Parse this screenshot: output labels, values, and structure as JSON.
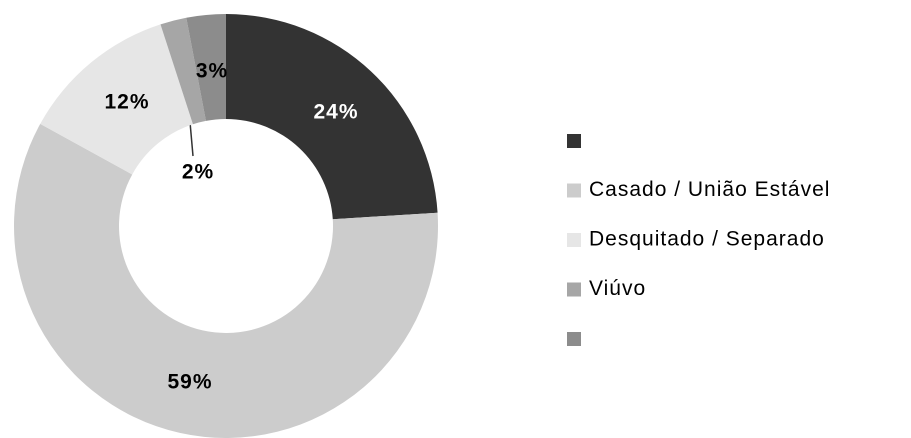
{
  "chart_data": {
    "type": "donut",
    "categories": [
      null,
      "Casado / União Estável",
      "Desquitado / Separado",
      "Viúvo",
      null
    ],
    "values": [
      24,
      59,
      12,
      2,
      3
    ],
    "value_labels": [
      "24%",
      "59%",
      "12%",
      "2%",
      "3%"
    ],
    "colors": [
      "#333333",
      "#cccccc",
      "#e6e6e6",
      "#a6a6a6",
      "#8c8c8c"
    ],
    "legend": "right"
  }
}
